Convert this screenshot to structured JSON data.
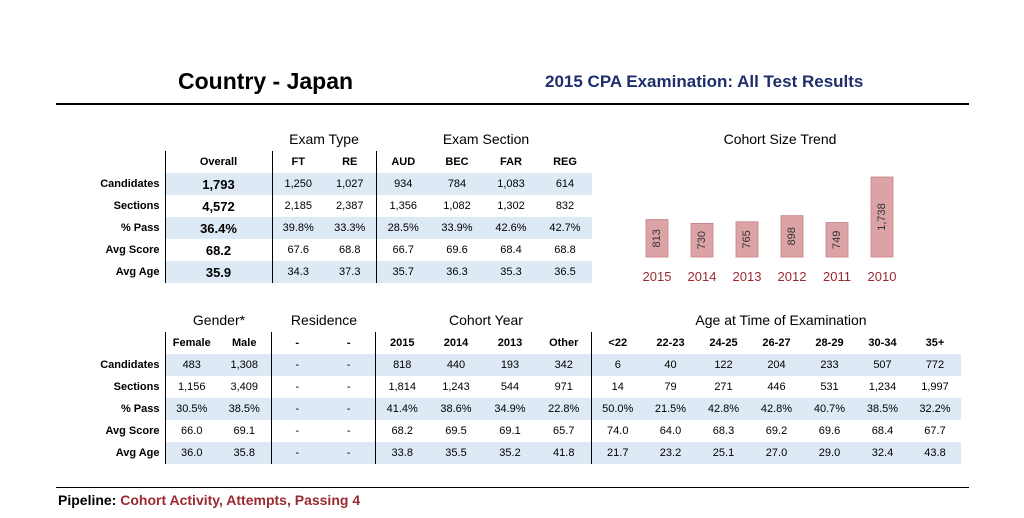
{
  "header": {
    "country": "Country - Japan",
    "subtitle": "2015 CPA Examination: All Test Results"
  },
  "footer": {
    "pipeline_label": "Pipeline:",
    "pipeline_value": "Cohort Activity, Attempts, Passing 4"
  },
  "row_labels": [
    "Candidates",
    "Sections",
    "% Pass",
    "Avg Score",
    "Avg Age"
  ],
  "top_table": {
    "group_exam_type": "Exam Type",
    "group_exam_section": "Exam Section",
    "columns": [
      "Overall",
      "FT",
      "RE",
      "AUD",
      "BEC",
      "FAR",
      "REG"
    ],
    "rows": [
      [
        "1,793",
        "1,250",
        "1,027",
        "934",
        "784",
        "1,083",
        "614"
      ],
      [
        "4,572",
        "2,185",
        "2,387",
        "1,356",
        "1,082",
        "1,302",
        "832"
      ],
      [
        "36.4%",
        "39.8%",
        "33.3%",
        "28.5%",
        "33.9%",
        "42.6%",
        "42.7%"
      ],
      [
        "68.2",
        "67.6",
        "68.8",
        "66.7",
        "69.6",
        "68.4",
        "68.8"
      ],
      [
        "35.9",
        "34.3",
        "37.3",
        "35.7",
        "36.3",
        "35.3",
        "36.5"
      ]
    ]
  },
  "bottom_table": {
    "group_gender": "Gender*",
    "group_residence": "Residence",
    "group_cohort_year": "Cohort Year",
    "group_age": "Age at Time of Examination",
    "columns": [
      "Female",
      "Male",
      "-",
      "-",
      "2015",
      "2014",
      "2013",
      "Other",
      "<22",
      "22-23",
      "24-25",
      "26-27",
      "28-29",
      "30-34",
      "35+"
    ],
    "rows": [
      [
        "483",
        "1,308",
        "-",
        "-",
        "818",
        "440",
        "193",
        "342",
        "6",
        "40",
        "122",
        "204",
        "233",
        "507",
        "772"
      ],
      [
        "1,156",
        "3,409",
        "-",
        "-",
        "1,814",
        "1,243",
        "544",
        "971",
        "14",
        "79",
        "271",
        "446",
        "531",
        "1,234",
        "1,997"
      ],
      [
        "30.5%",
        "38.5%",
        "-",
        "-",
        "41.4%",
        "38.6%",
        "34.9%",
        "22.8%",
        "50.0%",
        "21.5%",
        "42.8%",
        "42.8%",
        "40.7%",
        "38.5%",
        "32.2%"
      ],
      [
        "66.0",
        "69.1",
        "-",
        "-",
        "68.2",
        "69.5",
        "69.1",
        "65.7",
        "74.0",
        "64.0",
        "68.3",
        "69.2",
        "69.6",
        "68.4",
        "67.7"
      ],
      [
        "36.0",
        "35.8",
        "-",
        "-",
        "33.8",
        "35.5",
        "35.2",
        "41.8",
        "21.7",
        "23.2",
        "25.1",
        "27.0",
        "29.0",
        "32.4",
        "43.8"
      ]
    ]
  },
  "chart_data": {
    "type": "bar",
    "title": "Cohort Size Trend",
    "categories": [
      "2015",
      "2014",
      "2013",
      "2012",
      "2011",
      "2010"
    ],
    "values": [
      813,
      730,
      765,
      898,
      749,
      1738
    ],
    "value_labels": [
      "813",
      "730",
      "765",
      "898",
      "749",
      "1,738"
    ],
    "bar_color": "#dca3a6",
    "bar_edge_color": "#c77f84",
    "label_color": "#9b2a30"
  }
}
